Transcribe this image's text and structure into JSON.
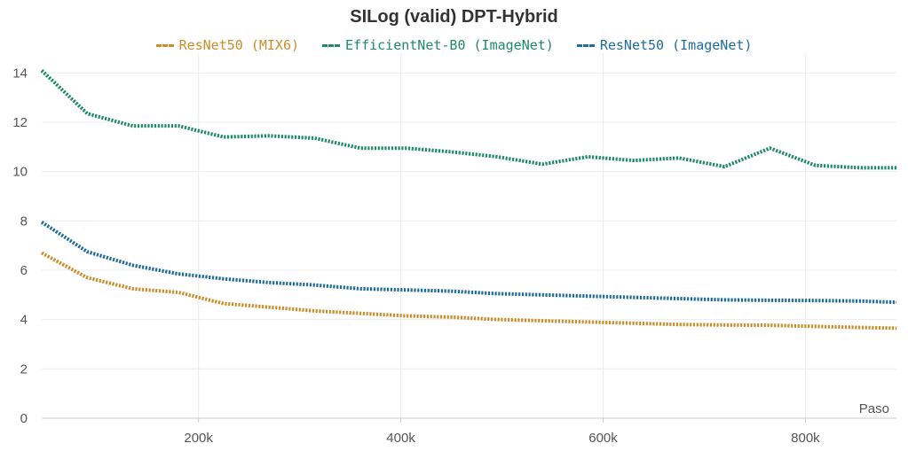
{
  "chart_data": {
    "type": "line",
    "title": "SILog (valid) DPT-Hybrid",
    "xlabel": "Paso",
    "ylabel": "",
    "xlim": [
      45000,
      890000
    ],
    "ylim": [
      0,
      14.8
    ],
    "x_ticks": [
      200000,
      400000,
      600000,
      800000
    ],
    "x_tick_labels": [
      "200k",
      "400k",
      "600k",
      "800k"
    ],
    "y_ticks": [
      0,
      2,
      4,
      6,
      8,
      10,
      12,
      14
    ],
    "y_tick_labels": [
      "0",
      "2",
      "4",
      "6",
      "8",
      "10",
      "12",
      "14"
    ],
    "grid": true,
    "legend_position": "top-center",
    "series": [
      {
        "name": "ResNet50 (MIX6)",
        "color": "#c98d2a",
        "points": [
          [
            45000,
            6.7
          ],
          [
            90000,
            5.7
          ],
          [
            135000,
            5.25
          ],
          [
            180000,
            5.1
          ],
          [
            225000,
            4.65
          ],
          [
            270000,
            4.5
          ],
          [
            315000,
            4.35
          ],
          [
            360000,
            4.25
          ],
          [
            405000,
            4.15
          ],
          [
            450000,
            4.1
          ],
          [
            495000,
            4.0
          ],
          [
            540000,
            3.95
          ],
          [
            585000,
            3.9
          ],
          [
            630000,
            3.85
          ],
          [
            675000,
            3.8
          ],
          [
            720000,
            3.78
          ],
          [
            765000,
            3.77
          ],
          [
            810000,
            3.72
          ],
          [
            855000,
            3.68
          ],
          [
            890000,
            3.65
          ]
        ]
      },
      {
        "name": "EfficientNet-B0 (ImageNet)",
        "color": "#1f8a68",
        "points": [
          [
            45000,
            14.1
          ],
          [
            90000,
            12.35
          ],
          [
            135000,
            11.85
          ],
          [
            180000,
            11.85
          ],
          [
            225000,
            11.4
          ],
          [
            270000,
            11.45
          ],
          [
            315000,
            11.35
          ],
          [
            360000,
            10.95
          ],
          [
            405000,
            10.95
          ],
          [
            450000,
            10.8
          ],
          [
            495000,
            10.6
          ],
          [
            540000,
            10.3
          ],
          [
            585000,
            10.6
          ],
          [
            630000,
            10.45
          ],
          [
            675000,
            10.55
          ],
          [
            720000,
            10.2
          ],
          [
            765000,
            10.95
          ],
          [
            810000,
            10.25
          ],
          [
            855000,
            10.15
          ],
          [
            890000,
            10.15
          ]
        ]
      },
      {
        "name": "ResNet50 (ImageNet)",
        "color": "#1f6b99",
        "points": [
          [
            45000,
            7.95
          ],
          [
            90000,
            6.75
          ],
          [
            135000,
            6.2
          ],
          [
            180000,
            5.85
          ],
          [
            225000,
            5.65
          ],
          [
            270000,
            5.5
          ],
          [
            315000,
            5.4
          ],
          [
            360000,
            5.25
          ],
          [
            405000,
            5.2
          ],
          [
            450000,
            5.15
          ],
          [
            495000,
            5.05
          ],
          [
            540000,
            5.0
          ],
          [
            585000,
            4.95
          ],
          [
            630000,
            4.9
          ],
          [
            675000,
            4.85
          ],
          [
            720000,
            4.8
          ],
          [
            765000,
            4.78
          ],
          [
            810000,
            4.77
          ],
          [
            855000,
            4.75
          ],
          [
            890000,
            4.7
          ]
        ]
      }
    ]
  }
}
